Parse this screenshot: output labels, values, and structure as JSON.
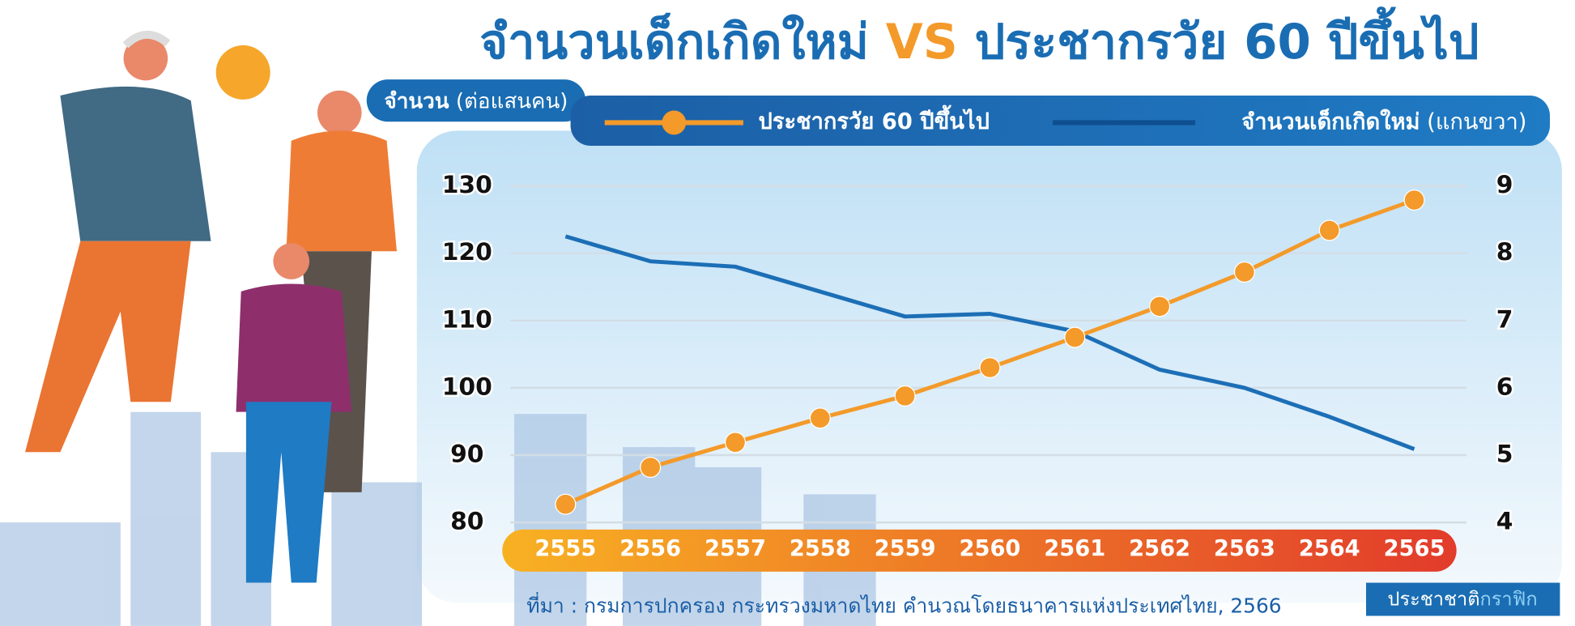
{
  "chart_data": {
    "type": "line",
    "title": [
      "จำนวนเด็กเกิดใหม่",
      "VS",
      "ประชากรวัย 60 ปีขึ้นไป"
    ],
    "y_label": [
      "จำนวน",
      "(ต่อแสนคน)"
    ],
    "right_axis_note": "(แกนขวา)",
    "categories": [
      "2555",
      "2556",
      "2557",
      "2558",
      "2559",
      "2560",
      "2561",
      "2562",
      "2563",
      "2564",
      "2565"
    ],
    "series": [
      {
        "name": "ประชากรวัย 60 ปีขึ้นไป",
        "color": "#f39a2a",
        "values": [
          82.7,
          88.2,
          91.9,
          95.5,
          98.8,
          103.0,
          107.5,
          112.1,
          117.2,
          123.4,
          127.9
        ]
      },
      {
        "name": "จำนวนเด็กเกิดใหม่",
        "color": "#1c6fb6",
        "axis": "y2",
        "values": [
          8.25,
          7.88,
          7.8,
          7.43,
          7.06,
          7.1,
          6.84,
          6.27,
          6.0,
          5.57,
          5.09
        ]
      }
    ],
    "ylim": [
      80,
      130
    ],
    "yticks": [
      80,
      90,
      100,
      110,
      120,
      130
    ],
    "y2lim": [
      4,
      9
    ],
    "y2ticks": [
      4,
      5,
      6,
      7,
      8,
      9
    ],
    "grid": true,
    "source": "ที่มา : กรมการปกครอง กระทรวงมหาดไทย คำนวณโดยธนาคารแห่งประเทศไทย, 2566",
    "brand": [
      "ประชาชาติ",
      "กราฟิก"
    ]
  }
}
